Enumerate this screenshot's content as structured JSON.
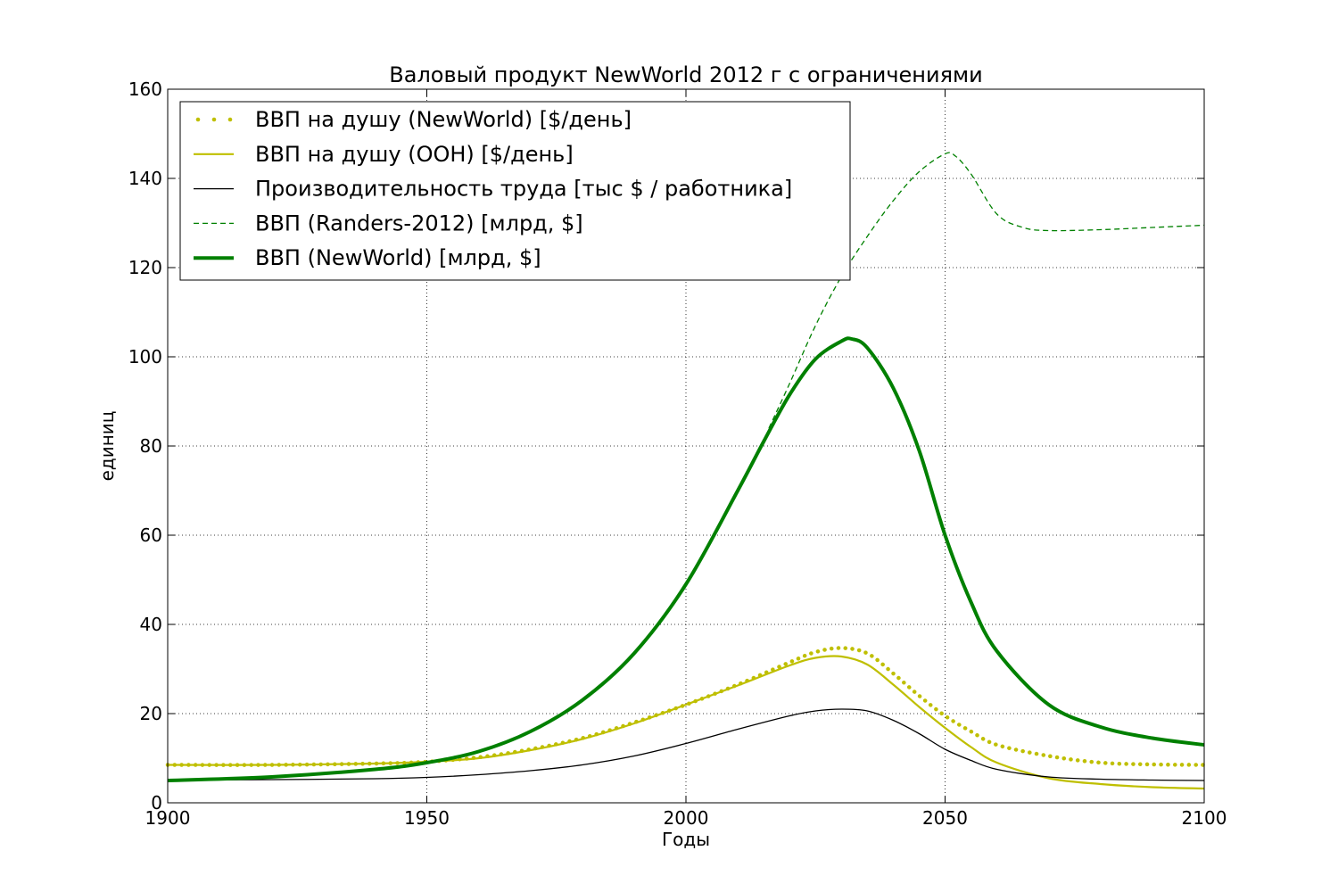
{
  "chart_data": {
    "type": "line",
    "title": "Валовый продукт NewWorld 2012 г с ограничениями",
    "xlabel": "Годы",
    "ylabel": "единиц",
    "xlim": [
      1900,
      2100
    ],
    "ylim": [
      0,
      160
    ],
    "xticks": [
      1900,
      1950,
      2000,
      2050,
      2100
    ],
    "yticks": [
      0,
      20,
      40,
      60,
      80,
      100,
      120,
      140,
      160
    ],
    "grid": true,
    "legend_position": "top-left",
    "series": [
      {
        "name": "ВВП на душу (NewWorld) [$/день]",
        "style": "dotted",
        "color": "#bfbf00",
        "x": [
          1900,
          1920,
          1940,
          1950,
          1960,
          1970,
          1980,
          1990,
          2000,
          2010,
          2020,
          2025,
          2030,
          2035,
          2040,
          2045,
          2050,
          2055,
          2060,
          2070,
          2080,
          2090,
          2100
        ],
        "y": [
          8.5,
          8.5,
          8.8,
          9.2,
          10.2,
          12,
          14.5,
          18,
          22,
          26.5,
          31.5,
          33.8,
          34.7,
          33.5,
          29,
          24,
          19.5,
          16,
          13,
          10.5,
          9,
          8.6,
          8.5
        ]
      },
      {
        "name": "ВВП на душу (ООН) [$/день]",
        "style": "solid",
        "color": "#bfbf00",
        "x": [
          1900,
          1920,
          1940,
          1950,
          1960,
          1970,
          1980,
          1990,
          2000,
          2010,
          2020,
          2025,
          2030,
          2035,
          2040,
          2045,
          2050,
          2055,
          2060,
          2070,
          2080,
          2090,
          2100
        ],
        "y": [
          8.5,
          8.5,
          8.8,
          9.2,
          10,
          11.8,
          14.3,
          17.8,
          22,
          26.3,
          30.8,
          32.5,
          32.8,
          31,
          26.5,
          21.5,
          16.8,
          12.5,
          9,
          5.5,
          4.2,
          3.5,
          3.2
        ]
      },
      {
        "name": "Производительность труда [тыс $ / работника]",
        "style": "solid-thin",
        "color": "#000000",
        "x": [
          1900,
          1920,
          1940,
          1950,
          1960,
          1970,
          1980,
          1990,
          2000,
          2010,
          2020,
          2025,
          2030,
          2035,
          2040,
          2045,
          2050,
          2055,
          2060,
          2070,
          2080,
          2090,
          2100
        ],
        "y": [
          5.1,
          5.2,
          5.4,
          5.7,
          6.3,
          7.2,
          8.5,
          10.5,
          13.3,
          16.5,
          19.5,
          20.6,
          21,
          20.6,
          18.5,
          15.5,
          12,
          9.5,
          7.5,
          5.8,
          5.3,
          5.1,
          5
        ]
      },
      {
        "name": "ВВП (Randers-2012) [млрд, $]",
        "style": "dashed",
        "color": "#008000",
        "x": [
          2016,
          2020,
          2025,
          2030,
          2035,
          2040,
          2045,
          2050,
          2052,
          2055,
          2060,
          2065,
          2070,
          2080,
          2090,
          2100
        ],
        "y": [
          84,
          94,
          107,
          118,
          127,
          135,
          141.5,
          145.5,
          145,
          141,
          132,
          129,
          128.3,
          128.5,
          129,
          129.5
        ]
      },
      {
        "name": "ВВП (NewWorld) [млрд, $]",
        "style": "solid-thick",
        "color": "#008000",
        "x": [
          1900,
          1920,
          1940,
          1950,
          1960,
          1970,
          1980,
          1990,
          2000,
          2010,
          2015,
          2020,
          2025,
          2030,
          2032,
          2035,
          2040,
          2045,
          2050,
          2055,
          2060,
          2070,
          2080,
          2090,
          2100
        ],
        "y": [
          5,
          5.8,
          7.5,
          9,
          11.5,
          16,
          23,
          33.5,
          49,
          70,
          81,
          91.5,
          99.5,
          103.5,
          104,
          102,
          93,
          79,
          60,
          45,
          34,
          22,
          17,
          14.5,
          13
        ]
      }
    ]
  }
}
